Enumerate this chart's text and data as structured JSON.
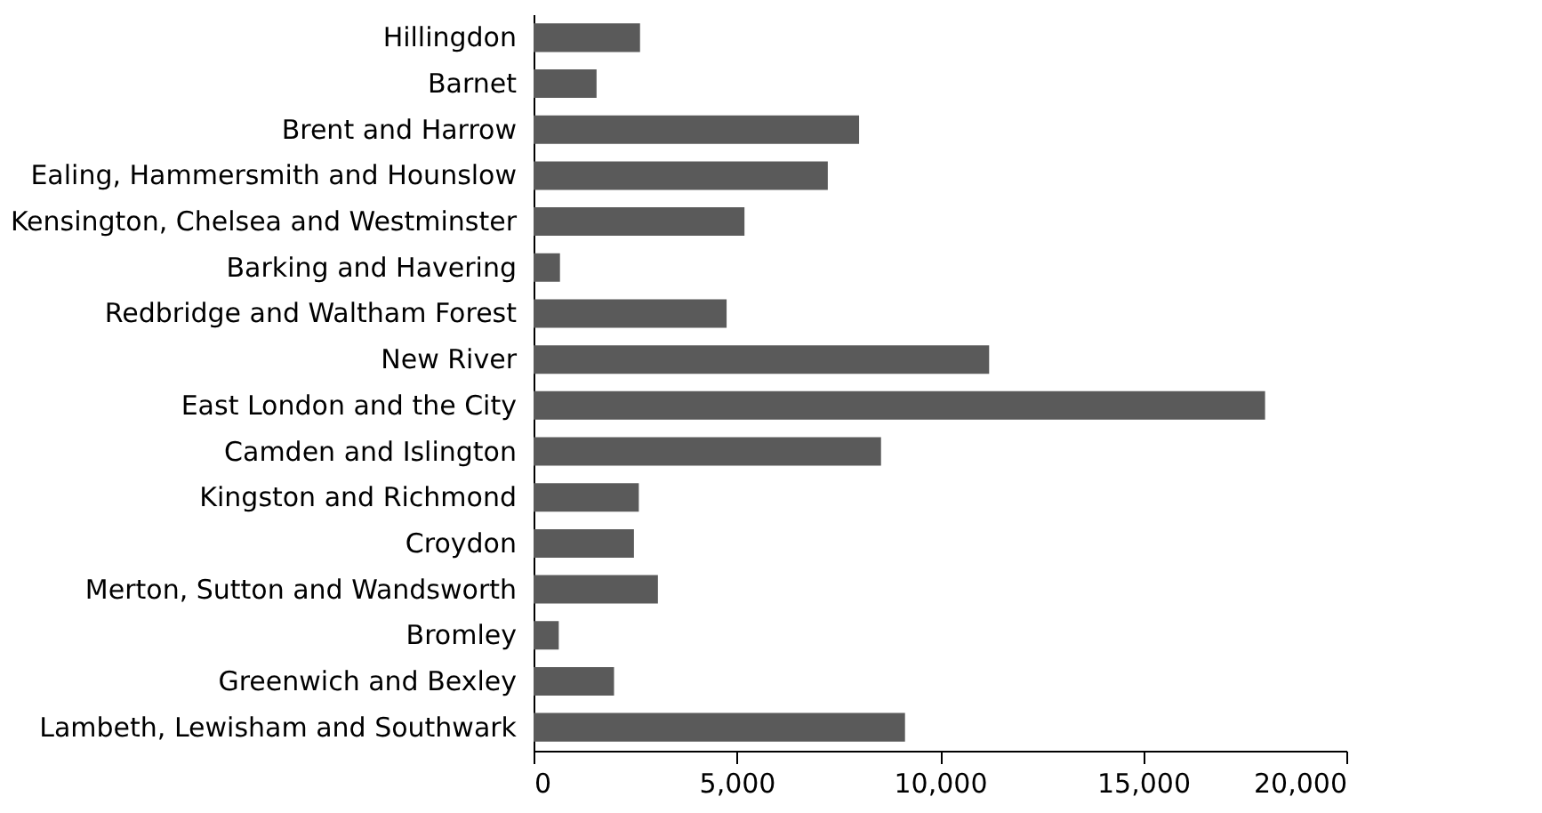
{
  "chart_data": {
    "type": "bar",
    "orientation": "horizontal",
    "categories": [
      "Hillingdon",
      "Barnet",
      "Brent and Harrow",
      "Ealing, Hammersmith and Hounslow",
      "Kensington, Chelsea and Westminster",
      "Barking and Havering",
      "Redbridge and Waltham Forest",
      "New River",
      "East London and the City",
      "Camden and Islington",
      "Kingston and Richmond",
      "Croydon",
      "Merton, Sutton and Wandsworth",
      "Bromley",
      "Greenwich and Bexley",
      "Lambeth, Lewisham and Southwark"
    ],
    "values": [
      2620,
      1550,
      8010,
      7240,
      5190,
      650,
      4750,
      11210,
      18000,
      8550,
      2590,
      2470,
      3060,
      620,
      1980,
      9140
    ],
    "color": "#5a5a5a",
    "xlim": [
      0,
      20000
    ],
    "xticks": [
      0,
      {
        "value": 5000,
        "label": "5,000"
      },
      {
        "value": 10000,
        "label": "10,000"
      },
      {
        "value": 15000,
        "label": "15,000"
      },
      {
        "value": 20000,
        "label": "20,000"
      }
    ],
    "grid": false
  }
}
